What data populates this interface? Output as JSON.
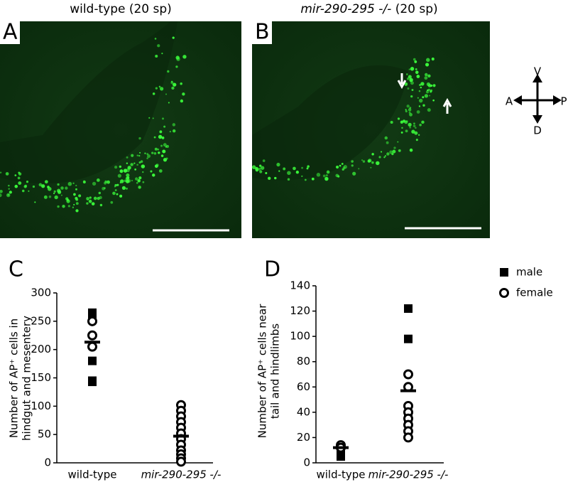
{
  "panels": [
    {
      "label": "A",
      "title": "wild-type (20 sp)"
    },
    {
      "label": "B",
      "title_italic": "mir-290-295 -/-",
      "title_rest": "(20 sp)"
    }
  ],
  "compass": {
    "up": "V",
    "left": "A",
    "right": "P",
    "down": "D"
  },
  "chart_data": [
    {
      "type": "strip",
      "panel_label": "C",
      "ylabel": [
        "Number of AP⁺ cells in",
        "hindgut and mesentery"
      ],
      "categories": [
        "wild-type",
        "mir-290-295 -/-"
      ],
      "ylim": [
        0,
        300
      ],
      "yticks": [
        0,
        50,
        100,
        150,
        200,
        250,
        300
      ],
      "series": [
        {
          "marker": "square",
          "color": "#000000",
          "x": [
            "wild-type",
            "wild-type",
            "wild-type",
            "wild-type",
            "wild-type",
            "mir-290-295 -/-",
            "mir-290-295 -/-",
            "mir-290-295 -/-",
            "mir-290-295 -/-"
          ],
          "values": [
            265,
            262,
            180,
            145,
            143,
            48,
            40,
            28,
            18
          ]
        },
        {
          "marker": "circle",
          "color": "#000000",
          "x": [
            "wild-type",
            "wild-type",
            "wild-type",
            "mir-290-295 -/-",
            "mir-290-295 -/-",
            "mir-290-295 -/-",
            "mir-290-295 -/-",
            "mir-290-295 -/-",
            "mir-290-295 -/-",
            "mir-290-295 -/-",
            "mir-290-295 -/-",
            "mir-290-295 -/-",
            "mir-290-295 -/-",
            "mir-290-295 -/-",
            "mir-290-295 -/-"
          ],
          "values": [
            250,
            225,
            205,
            102,
            92,
            82,
            72,
            62,
            52,
            42,
            32,
            22,
            15,
            8,
            2
          ]
        }
      ],
      "means": [
        213,
        47
      ]
    },
    {
      "type": "strip",
      "panel_label": "D",
      "ylabel": [
        "Number of AP⁺ cells near",
        "tail and hindlimbs"
      ],
      "categories": [
        "wild-type",
        "mir-290-295 -/-"
      ],
      "ylim": [
        0,
        140
      ],
      "yticks": [
        0,
        20,
        40,
        60,
        80,
        100,
        120,
        140
      ],
      "series": [
        {
          "name": "male",
          "marker": "square",
          "color": "#000000",
          "x": [
            "wild-type",
            "wild-type",
            "wild-type",
            "wild-type",
            "mir-290-295 -/-",
            "mir-290-295 -/-",
            "mir-290-295 -/-"
          ],
          "values": [
            13,
            10,
            8,
            5,
            122,
            98,
            35
          ]
        },
        {
          "name": "female",
          "marker": "circle",
          "color": "#000000",
          "x": [
            "wild-type",
            "wild-type",
            "mir-290-295 -/-",
            "mir-290-295 -/-",
            "mir-290-295 -/-",
            "mir-290-295 -/-",
            "mir-290-295 -/-",
            "mir-290-295 -/-",
            "mir-290-295 -/-",
            "mir-290-295 -/-"
          ],
          "values": [
            14,
            12,
            70,
            60,
            45,
            40,
            35,
            30,
            25,
            20
          ]
        }
      ],
      "means": [
        12,
        57
      ]
    }
  ]
}
